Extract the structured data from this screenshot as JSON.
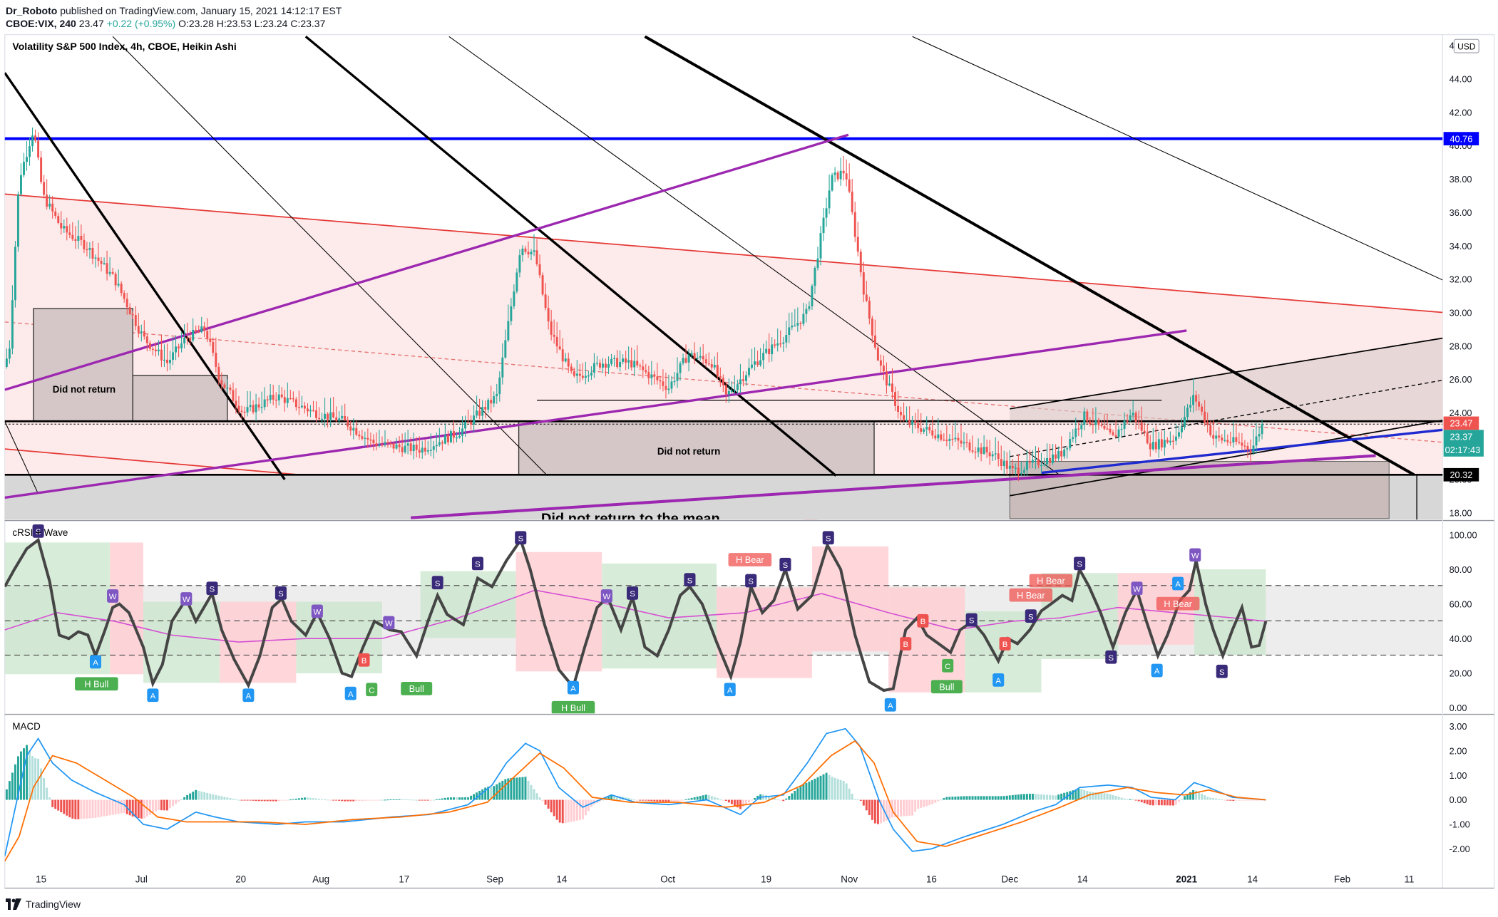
{
  "header": {
    "author": "Dr_Roboto",
    "published": "published on TradingView.com, January 15, 2021 14:12:17 EST",
    "symbol": "CBOE:VIX, 240",
    "last": "23.47",
    "change": "+0.22 (+0.95%)",
    "ohlc_o": "O:23.28",
    "ohlc_h": "H:23.53",
    "ohlc_l": "L:23.24",
    "ohlc_c": "C:23.37"
  },
  "main_title": "Volatility S&P 500 Index, 4h, CBOE, Heikin Ashi",
  "currency": "USD",
  "price_labels": {
    "resistance": "40.76",
    "last": "23.47",
    "close": "23.37",
    "countdown": "02:17:43",
    "support": "20.32"
  },
  "annotations": {
    "did_not_return_1": "Did not return",
    "did_not_return_2": "Did not return",
    "did_not_return_mean": "Did not return to the mean"
  },
  "colors": {
    "bull": "#26a69a",
    "bear": "#ef5350",
    "purple": "#9c27b0",
    "blue": "#0000ff",
    "macd_line": "#2196f3",
    "signal_line": "#ff6d00",
    "crsi_line": "#454545"
  },
  "chart_data": [
    {
      "type": "candlestick",
      "title": "Volatility S&P 500 Index, 4h, CBOE, Heikin Ashi",
      "ylim": [
        17.6,
        46.6
      ],
      "y_ticks": [
        "18.00",
        "20.00",
        "22.00",
        "24.00",
        "26.00",
        "28.00",
        "30.00",
        "32.00",
        "34.00",
        "36.00",
        "38.00",
        "40.00",
        "42.00",
        "44.00",
        "46.00"
      ],
      "x_ticks": [
        "15",
        "Jul",
        "20",
        "Aug",
        "17",
        "Sep",
        "14",
        "Oct",
        "19",
        "Nov",
        "16",
        "Dec",
        "14",
        "2021",
        "14",
        "Feb",
        "11"
      ],
      "close_path": [
        [
          0,
          25.5
        ],
        [
          10,
          28
        ],
        [
          20,
          38
        ],
        [
          35,
          41
        ],
        [
          45,
          37
        ],
        [
          65,
          35
        ],
        [
          90,
          34
        ],
        [
          120,
          32
        ],
        [
          150,
          28.5
        ],
        [
          175,
          27
        ],
        [
          195,
          28.5
        ],
        [
          215,
          29
        ],
        [
          230,
          26
        ],
        [
          255,
          24
        ],
        [
          290,
          25
        ],
        [
          330,
          24
        ],
        [
          360,
          23.5
        ],
        [
          390,
          22.2
        ],
        [
          410,
          22
        ],
        [
          440,
          21.8
        ],
        [
          480,
          22.8
        ],
        [
          520,
          25
        ],
        [
          545,
          34
        ],
        [
          560,
          33.5
        ],
        [
          575,
          29
        ],
        [
          600,
          26
        ],
        [
          630,
          27
        ],
        [
          660,
          27
        ],
        [
          700,
          25.5
        ],
        [
          720,
          27.5
        ],
        [
          745,
          27
        ],
        [
          760,
          25
        ],
        [
          790,
          27
        ],
        [
          820,
          28.5
        ],
        [
          845,
          30
        ],
        [
          870,
          38
        ],
        [
          885,
          38.5
        ],
        [
          905,
          31
        ],
        [
          920,
          27
        ],
        [
          945,
          23.5
        ],
        [
          1000,
          22.3
        ],
        [
          1040,
          21.5
        ],
        [
          1060,
          20.5
        ],
        [
          1085,
          21
        ],
        [
          1110,
          21.5
        ],
        [
          1135,
          23.8
        ],
        [
          1165,
          22.5
        ],
        [
          1185,
          24
        ],
        [
          1205,
          22
        ],
        [
          1230,
          22.5
        ],
        [
          1250,
          25
        ],
        [
          1270,
          22.5
        ],
        [
          1295,
          22.2
        ],
        [
          1310,
          21.8
        ],
        [
          1322,
          23.4
        ]
      ]
    },
    {
      "type": "line",
      "title": "cRSI + Wave",
      "ylim": [
        0,
        100
      ],
      "y_ticks": [
        "0.00",
        "20.00",
        "40.00",
        "60.00",
        "80.00",
        "100.00"
      ],
      "levels": [
        30,
        50,
        70
      ],
      "signals": [
        {
          "label": "S",
          "kind": "top"
        },
        {
          "label": "A",
          "kind": "bottom"
        },
        {
          "label": "H Bull",
          "kind": "bull"
        },
        {
          "label": "W",
          "kind": "top"
        },
        {
          "label": "A",
          "kind": "bottom"
        },
        {
          "label": "W",
          "kind": "top"
        },
        {
          "label": "S",
          "kind": "top"
        },
        {
          "label": "A",
          "kind": "bottom"
        },
        {
          "label": "S",
          "kind": "top"
        },
        {
          "label": "W",
          "kind": "top"
        },
        {
          "label": "B",
          "kind": "bear"
        },
        {
          "label": "A",
          "kind": "bottom"
        },
        {
          "label": "C",
          "kind": "bull"
        },
        {
          "label": "W",
          "kind": "top"
        },
        {
          "label": "Bull",
          "kind": "bull"
        },
        {
          "label": "S",
          "kind": "top"
        },
        {
          "label": "S",
          "kind": "top"
        },
        {
          "label": "S",
          "kind": "top"
        },
        {
          "label": "A",
          "kind": "bottom"
        },
        {
          "label": "H Bull",
          "kind": "bull"
        },
        {
          "label": "W",
          "kind": "top"
        },
        {
          "label": "S",
          "kind": "top"
        },
        {
          "label": "S",
          "kind": "top"
        },
        {
          "label": "A",
          "kind": "bottom"
        },
        {
          "label": "H Bear",
          "kind": "bear"
        },
        {
          "label": "S",
          "kind": "top"
        },
        {
          "label": "S",
          "kind": "top"
        },
        {
          "label": "S",
          "kind": "top"
        },
        {
          "label": "A",
          "kind": "bottom"
        },
        {
          "label": "B",
          "kind": "bear"
        },
        {
          "label": "B",
          "kind": "bear"
        },
        {
          "label": "C",
          "kind": "bull"
        },
        {
          "label": "Bull",
          "kind": "bull"
        },
        {
          "label": "S",
          "kind": "top"
        },
        {
          "label": "A",
          "kind": "bottom"
        },
        {
          "label": "B",
          "kind": "bear"
        },
        {
          "label": "H Bear",
          "kind": "bear"
        },
        {
          "label": "S",
          "kind": "top"
        },
        {
          "label": "H Bear",
          "kind": "bear"
        },
        {
          "label": "S",
          "kind": "top"
        },
        {
          "label": "S",
          "kind": "top"
        },
        {
          "label": "A",
          "kind": "bottom"
        },
        {
          "label": "W",
          "kind": "top"
        },
        {
          "label": "A",
          "kind": "bottom"
        },
        {
          "label": "H Bear",
          "kind": "bear"
        },
        {
          "label": "W",
          "kind": "top"
        },
        {
          "label": "S",
          "kind": "top"
        },
        {
          "label": "A",
          "kind": "bottom"
        }
      ],
      "crsi_path": [
        [
          5,
          70
        ],
        [
          15,
          80
        ],
        [
          28,
          92
        ],
        [
          40,
          97
        ],
        [
          52,
          73
        ],
        [
          62,
          42
        ],
        [
          72,
          40
        ],
        [
          82,
          44
        ],
        [
          92,
          42
        ],
        [
          100,
          30
        ],
        [
          110,
          45
        ],
        [
          118,
          58
        ],
        [
          125,
          60
        ],
        [
          135,
          55
        ],
        [
          150,
          35
        ],
        [
          160,
          14
        ],
        [
          170,
          25
        ],
        [
          180,
          50
        ],
        [
          195,
          63
        ],
        [
          205,
          50
        ],
        [
          222,
          66
        ],
        [
          232,
          45
        ],
        [
          245,
          28
        ],
        [
          260,
          13
        ],
        [
          272,
          30
        ],
        [
          285,
          58
        ],
        [
          295,
          63
        ],
        [
          305,
          50
        ],
        [
          320,
          42
        ],
        [
          332,
          55
        ],
        [
          345,
          40
        ],
        [
          358,
          20
        ],
        [
          368,
          18
        ],
        [
          380,
          35
        ],
        [
          392,
          50
        ],
        [
          408,
          45
        ],
        [
          420,
          44
        ],
        [
          436,
          30
        ],
        [
          448,
          50
        ],
        [
          458,
          65
        ],
        [
          468,
          54
        ],
        [
          485,
          48
        ],
        [
          500,
          75
        ],
        [
          515,
          70
        ],
        [
          530,
          85
        ],
        [
          545,
          97
        ],
        [
          555,
          80
        ],
        [
          570,
          48
        ],
        [
          585,
          22
        ],
        [
          600,
          12
        ],
        [
          612,
          35
        ],
        [
          625,
          58
        ],
        [
          636,
          64
        ],
        [
          650,
          45
        ],
        [
          662,
          64
        ],
        [
          675,
          35
        ],
        [
          688,
          30
        ],
        [
          700,
          45
        ],
        [
          712,
          65
        ],
        [
          722,
          70
        ],
        [
          735,
          60
        ],
        [
          750,
          38
        ],
        [
          765,
          18
        ],
        [
          775,
          38
        ],
        [
          786,
          70
        ],
        [
          798,
          55
        ],
        [
          810,
          62
        ],
        [
          822,
          80
        ],
        [
          835,
          57
        ],
        [
          850,
          65
        ],
        [
          866,
          94
        ],
        [
          880,
          80
        ],
        [
          895,
          42
        ],
        [
          910,
          15
        ],
        [
          925,
          10
        ],
        [
          935,
          11
        ],
        [
          948,
          45
        ],
        [
          960,
          52
        ],
        [
          970,
          42
        ],
        [
          985,
          36
        ],
        [
          995,
          32
        ],
        [
          1005,
          45
        ],
        [
          1018,
          50
        ],
        [
          1030,
          42
        ],
        [
          1045,
          27
        ],
        [
          1055,
          40
        ],
        [
          1065,
          37
        ],
        [
          1078,
          45
        ],
        [
          1090,
          56
        ],
        [
          1100,
          60
        ],
        [
          1112,
          65
        ],
        [
          1122,
          62
        ],
        [
          1130,
          80
        ],
        [
          1140,
          70
        ],
        [
          1152,
          55
        ],
        [
          1165,
          35
        ],
        [
          1178,
          55
        ],
        [
          1190,
          68
        ],
        [
          1200,
          50
        ],
        [
          1212,
          30
        ],
        [
          1222,
          42
        ],
        [
          1235,
          62
        ],
        [
          1245,
          68
        ],
        [
          1252,
          85
        ],
        [
          1262,
          60
        ],
        [
          1270,
          45
        ],
        [
          1280,
          30
        ],
        [
          1290,
          45
        ],
        [
          1300,
          58
        ],
        [
          1310,
          35
        ],
        [
          1318,
          36
        ],
        [
          1325,
          50
        ]
      ],
      "ma_path": [
        [
          5,
          45
        ],
        [
          60,
          55
        ],
        [
          120,
          50
        ],
        [
          180,
          42
        ],
        [
          250,
          38
        ],
        [
          320,
          40
        ],
        [
          400,
          40
        ],
        [
          480,
          52
        ],
        [
          560,
          68
        ],
        [
          620,
          62
        ],
        [
          700,
          52
        ],
        [
          780,
          55
        ],
        [
          860,
          66
        ],
        [
          930,
          55
        ],
        [
          1000,
          45
        ],
        [
          1060,
          50
        ],
        [
          1110,
          52
        ],
        [
          1170,
          58
        ],
        [
          1230,
          55
        ],
        [
          1290,
          52
        ],
        [
          1325,
          50
        ]
      ]
    },
    {
      "type": "line",
      "title": "MACD",
      "ylim": [
        -2.7,
        3.3
      ],
      "y_ticks": [
        "-2.00",
        "-1.00",
        "0.00",
        "1.00",
        "2.00",
        "3.00"
      ],
      "macd_path": [
        [
          5,
          -2.3
        ],
        [
          15,
          -0.5
        ],
        [
          28,
          1.8
        ],
        [
          40,
          2.5
        ],
        [
          55,
          1.5
        ],
        [
          75,
          0.8
        ],
        [
          100,
          0.3
        ],
        [
          130,
          -0.2
        ],
        [
          150,
          -1.0
        ],
        [
          175,
          -1.2
        ],
        [
          205,
          -0.5
        ],
        [
          225,
          -0.7
        ],
        [
          250,
          -0.9
        ],
        [
          290,
          -1.0
        ],
        [
          320,
          -0.9
        ],
        [
          360,
          -0.9
        ],
        [
          410,
          -0.7
        ],
        [
          450,
          -0.6
        ],
        [
          490,
          -0.2
        ],
        [
          515,
          0.6
        ],
        [
          530,
          1.5
        ],
        [
          550,
          2.3
        ],
        [
          565,
          2.0
        ],
        [
          585,
          0.5
        ],
        [
          610,
          -0.3
        ],
        [
          640,
          0.2
        ],
        [
          665,
          -0.1
        ],
        [
          700,
          -0.2
        ],
        [
          740,
          0.0
        ],
        [
          775,
          -0.6
        ],
        [
          795,
          0.1
        ],
        [
          820,
          0.2
        ],
        [
          845,
          1.5
        ],
        [
          865,
          2.7
        ],
        [
          885,
          2.9
        ],
        [
          900,
          2.2
        ],
        [
          920,
          0.0
        ],
        [
          935,
          -1.2
        ],
        [
          955,
          -2.1
        ],
        [
          975,
          -2.0
        ],
        [
          1010,
          -1.5
        ],
        [
          1050,
          -1.0
        ],
        [
          1080,
          -0.5
        ],
        [
          1105,
          -0.2
        ],
        [
          1130,
          0.5
        ],
        [
          1160,
          0.6
        ],
        [
          1185,
          0.5
        ],
        [
          1205,
          0.1
        ],
        [
          1230,
          0.0
        ],
        [
          1250,
          0.7
        ],
        [
          1265,
          0.5
        ],
        [
          1290,
          0.1
        ],
        [
          1325,
          0.0
        ]
      ],
      "signal_path": [
        [
          5,
          -2.5
        ],
        [
          20,
          -1.5
        ],
        [
          35,
          0.5
        ],
        [
          55,
          1.8
        ],
        [
          80,
          1.5
        ],
        [
          110,
          0.8
        ],
        [
          140,
          0.1
        ],
        [
          165,
          -0.7
        ],
        [
          195,
          -0.9
        ],
        [
          230,
          -0.9
        ],
        [
          270,
          -0.9
        ],
        [
          320,
          -1.0
        ],
        [
          370,
          -0.8
        ],
        [
          420,
          -0.7
        ],
        [
          470,
          -0.5
        ],
        [
          510,
          -0.1
        ],
        [
          540,
          1.0
        ],
        [
          565,
          1.9
        ],
        [
          590,
          1.3
        ],
        [
          620,
          0.1
        ],
        [
          660,
          -0.1
        ],
        [
          710,
          -0.1
        ],
        [
          760,
          -0.3
        ],
        [
          800,
          -0.1
        ],
        [
          840,
          0.6
        ],
        [
          870,
          1.8
        ],
        [
          895,
          2.4
        ],
        [
          915,
          1.5
        ],
        [
          935,
          -0.5
        ],
        [
          960,
          -1.7
        ],
        [
          990,
          -1.9
        ],
        [
          1030,
          -1.4
        ],
        [
          1070,
          -0.9
        ],
        [
          1110,
          -0.3
        ],
        [
          1140,
          0.2
        ],
        [
          1180,
          0.5
        ],
        [
          1210,
          0.3
        ],
        [
          1240,
          0.2
        ],
        [
          1265,
          0.4
        ],
        [
          1295,
          0.1
        ],
        [
          1325,
          0.0
        ]
      ]
    }
  ]
}
